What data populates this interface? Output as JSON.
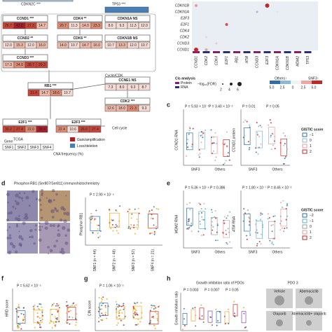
{
  "panel_labels": [
    "c",
    "d",
    "e",
    "f",
    "g",
    "h"
  ],
  "a": {
    "top": [
      "CDKN2C ***",
      "TP53 ***"
    ],
    "nodes": [
      {
        "label": "CCND1 ***",
        "cells": [
          "26.7",
          "42.0",
          "27.3",
          "14.7"
        ]
      },
      {
        "label": "CDK4 **",
        "cells": [
          "20.7",
          "11.3",
          "14.0",
          "23.3"
        ]
      },
      {
        "label": "CDKN1A NS",
        "cells": [
          "8.0",
          "9.3",
          "11.3",
          "12.0"
        ]
      },
      {
        "label": "CCND2 **",
        "cells": [
          "12.0",
          "15.3",
          "12.0",
          "16.0"
        ]
      },
      {
        "label": "CDK6 **",
        "cells": [
          "14.0",
          "10.7",
          "14.7",
          "16.0"
        ]
      },
      {
        "label": "CDKN1B NS",
        "cells": [
          "10.7",
          "13.3",
          "12.0",
          "10.7"
        ]
      },
      {
        "label": "CCND3 ***",
        "cells": [
          "17.3",
          "24.0",
          "28.7",
          "29.3"
        ]
      },
      {
        "label": "RB1 ***",
        "cells": [
          "31.4",
          "14.7",
          "18.6",
          "10.7"
        ]
      },
      {
        "label": "CCNE1 NS",
        "cells": [
          "7.3",
          "8.0",
          "9.3",
          "8.7"
        ]
      },
      {
        "label": "CDK2 ***",
        "cells": [
          "12.6",
          "18.0",
          "21.3",
          "9.3"
        ]
      },
      {
        "label": "E2F1 ***",
        "cells": [
          "30.2",
          "27.4",
          "22.0",
          "38.4"
        ]
      },
      {
        "label": "E2F3 ***",
        "cells": [
          "22.4",
          "10.6",
          "26.0",
          "27.4"
        ]
      }
    ],
    "cyclin_cdk": "Cyclin/CDK",
    "cell_cycle": "Cell cycle",
    "gene_key": {
      "label": "Gene",
      "sup": "TCGA",
      "subtypes": [
        "SNF1",
        "SNF2",
        "SNF3",
        "SNF4"
      ]
    },
    "cna_label": "CNA frequency (%)",
    "legend": [
      "Gain/amplification",
      "Loss/deletion"
    ]
  },
  "b": {
    "rows": [
      "CDKN1B",
      "CDKN1A",
      "E2F3",
      "E2F1",
      "CDK4",
      "CDK2",
      "CCND3",
      "CCND1"
    ],
    "cols": [
      "CCND1",
      "CDK2",
      "CDK4",
      "E2F1",
      "RB1",
      "ATM",
      "CCND3",
      "E2F3",
      "CDKN1A",
      "CDKN1B",
      "MDM2",
      "TP53"
    ],
    "legend_title": "Cis analysis",
    "types": [
      "Protein",
      "RNA"
    ],
    "size_label": "−log₁₀(FDR)",
    "sizes": [
      "2",
      "4",
      "6"
    ],
    "dir": [
      "Others↑",
      "SNF3↑"
    ],
    "scale": [
      "5.0",
      "2.5",
      "0",
      "2.5",
      "5.0"
    ]
  },
  "c": {
    "plots": [
      {
        "ylabel": "CCND1 RNA",
        "p": [
          "P = 5.93 × 10⁻⁷",
          "P = 3.40 × 10⁻²"
        ]
      },
      {
        "ylabel": "CCND1 protein",
        "p": [
          "P = 0.01",
          "P = 0.05"
        ]
      }
    ],
    "groups": [
      "SNF3",
      "Others"
    ],
    "legend_title": "GISTIC score",
    "legend": [
      "−1",
      "0",
      "1",
      "2"
    ]
  },
  "d": {
    "title": "Phosphor-RB1 (Ser807/Ser811) immunohistochemistry",
    "ylabel": "Phosphor RB1",
    "p": "P = 2.90 × 10⁻⁵",
    "groups": [
      "SNF1 (n = 44)",
      "SNF2 (n = 48)",
      "SNF3 (n = 57)",
      "SNF4 (n = 21)"
    ]
  },
  "e": {
    "plots": [
      {
        "ylabel": "MDM2 RNA",
        "p": [
          "P = 5.36 × 10⁻⁶",
          "P = 0.386"
        ]
      },
      {
        "ylabel": "ATM RNA",
        "p": [
          "P = 1.80 × 10⁻⁷",
          "P = 8.45 × 10⁻²"
        ]
      }
    ],
    "groups": [
      "SNF3",
      "Others"
    ],
    "legend_title": "GISTIC score",
    "legend": [
      "−2",
      "−1",
      "0",
      "1",
      "2"
    ]
  },
  "f": {
    "ylabel": "HRD score",
    "p": "P = 5.62 × 10⁻⁵"
  },
  "g": {
    "ylabel": "CIN score",
    "p": "P = 1.06 × 10⁻⁵"
  },
  "h": {
    "title": "Growth inhibition ratio of PDOs",
    "ylabel": "Growth inhibition ratio",
    "p": [
      "P = 0.003",
      "P = 0.007",
      "P = 0.05"
    ],
    "pdo": "PDO 3",
    "images": [
      "Vehicle",
      "Abemaciclib",
      "Olaparib",
      "Abemaciclib+ olaparib"
    ]
  }
}
